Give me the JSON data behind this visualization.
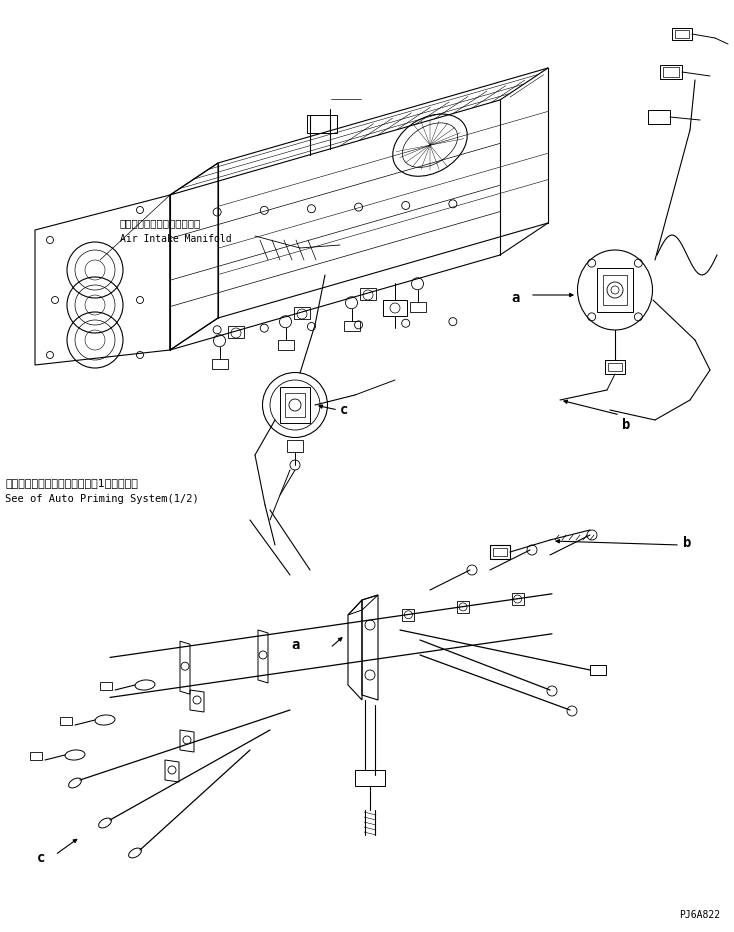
{
  "background_color": "#ffffff",
  "line_color": "#000000",
  "fig_width": 7.34,
  "fig_height": 9.32,
  "dpi": 100,
  "title_jp": "オートプライミングシステム（1／２）参照",
  "title_en": "See of Auto Priming System(1/2)",
  "label_jp_manifold": "エアーインテークマニホルド",
  "label_en_manifold": "Air Intake Manifold",
  "part_code": "PJ6A822",
  "callout_a_upper": "a",
  "callout_b_upper": "b",
  "callout_c_upper": "c",
  "callout_a_lower": "a",
  "callout_b_lower": "b",
  "callout_c_lower": "c"
}
